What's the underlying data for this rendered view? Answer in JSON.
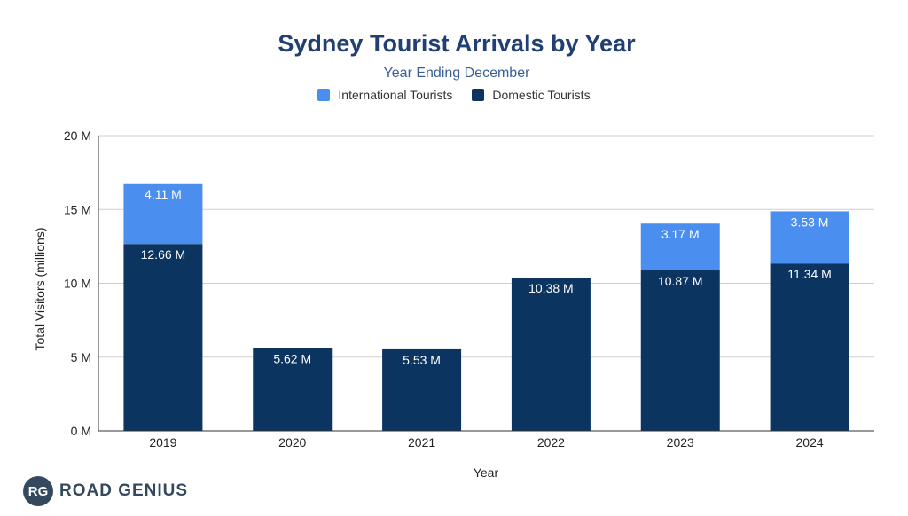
{
  "chart_data": {
    "type": "bar",
    "stacked": true,
    "title": "Sydney Tourist Arrivals by Year",
    "subtitle": "Year Ending December",
    "xlabel": "Year",
    "ylabel": "Total Visitors (millions)",
    "ylim": [
      0,
      20
    ],
    "yticks": [
      0,
      5,
      10,
      15,
      20
    ],
    "ytick_labels": [
      "0 M",
      "5 M",
      "10 M",
      "15 M",
      "20 M"
    ],
    "categories": [
      "2019",
      "2020",
      "2021",
      "2022",
      "2023",
      "2024"
    ],
    "series": [
      {
        "name": "Domestic Tourists",
        "color": "#0b3460",
        "values": [
          12.66,
          5.62,
          5.53,
          10.38,
          10.87,
          11.34
        ],
        "labels": [
          "12.66 M",
          "5.62 M",
          "5.53 M",
          "10.38 M",
          "10.87 M",
          "11.34 M"
        ]
      },
      {
        "name": "International Tourists",
        "color": "#4a8ef0",
        "values": [
          4.11,
          null,
          null,
          null,
          3.17,
          3.53
        ],
        "labels": [
          "4.11 M",
          "",
          "",
          "",
          "3.17 M",
          "3.53 M"
        ]
      }
    ],
    "legend_position": "top",
    "grid": true
  },
  "legend": [
    {
      "label": "International Tourists",
      "color": "#4a8ef0"
    },
    {
      "label": "Domestic Tourists",
      "color": "#0b3460"
    }
  ],
  "brand": {
    "badge": "RG",
    "name": "ROAD GENIUS"
  }
}
